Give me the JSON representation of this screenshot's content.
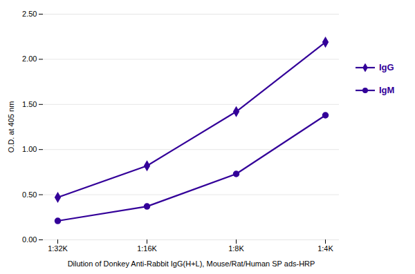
{
  "chart_data": {
    "type": "line",
    "categories": [
      "1:32K",
      "1:16K",
      "1:8K",
      "1:4K"
    ],
    "series": [
      {
        "name": "IgG",
        "color": "#330099",
        "marker": "diamond",
        "values": [
          0.47,
          0.82,
          1.42,
          2.19
        ]
      },
      {
        "name": "IgM",
        "color": "#330099",
        "marker": "circle",
        "values": [
          0.21,
          0.37,
          0.73,
          1.38
        ]
      }
    ],
    "xlabel": "Dilution of Donkey Anti-Rabbit IgG(H+L), Mouse/Rat/Human SP ads-HRP",
    "ylabel": "O.D. at 405 nm",
    "ylim": [
      0.0,
      2.5
    ],
    "yticks": [
      {
        "value": 0,
        "label": "0.00"
      },
      {
        "value": 0.5,
        "label": "0.50"
      },
      {
        "value": 1,
        "label": "1.00"
      },
      {
        "value": 1.5,
        "label": "1.50"
      },
      {
        "value": 2,
        "label": "2.00"
      },
      {
        "value": 2.5,
        "label": "2.50"
      }
    ],
    "grid": true,
    "legend": "right"
  }
}
